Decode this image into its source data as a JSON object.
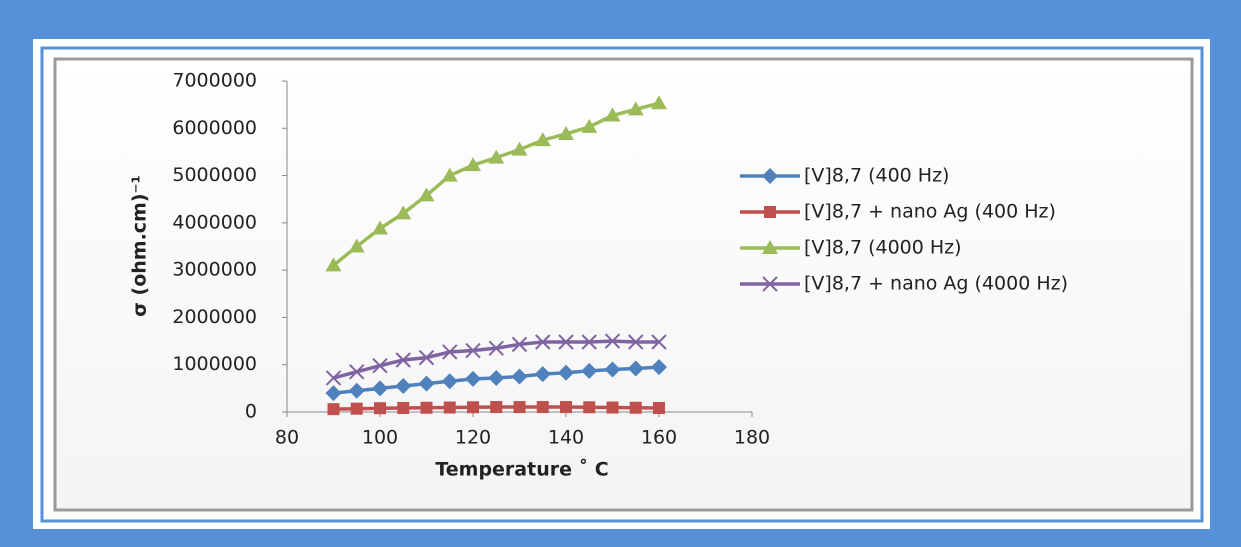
{
  "chart_data": {
    "type": "line",
    "x": [
      90,
      95,
      100,
      105,
      110,
      115,
      120,
      125,
      130,
      135,
      140,
      145,
      150,
      155,
      160
    ],
    "series": [
      {
        "name": "[V]8,7 (400 Hz)",
        "color": "#4f81bd",
        "marker": "diamond",
        "values": [
          400000,
          450000,
          500000,
          550000,
          600000,
          650000,
          700000,
          720000,
          750000,
          800000,
          830000,
          870000,
          900000,
          920000,
          950000
        ]
      },
      {
        "name": "[V]8,7 + nano Ag (400 Hz)",
        "color": "#c0504d",
        "marker": "square",
        "values": [
          60000,
          70000,
          80000,
          85000,
          90000,
          95000,
          100000,
          105000,
          105000,
          105000,
          105000,
          100000,
          95000,
          90000,
          85000
        ]
      },
      {
        "name": "[V]8,7 (4000 Hz)",
        "color": "#9bbb59",
        "marker": "triangle",
        "values": [
          3100000,
          3500000,
          3880000,
          4200000,
          4580000,
          5000000,
          5220000,
          5380000,
          5550000,
          5750000,
          5880000,
          6030000,
          6270000,
          6400000,
          6530000
        ]
      },
      {
        "name": "[V]8,7  + nano Ag (4000 Hz)",
        "color": "#8064a2",
        "marker": "x",
        "values": [
          720000,
          850000,
          980000,
          1100000,
          1150000,
          1270000,
          1300000,
          1350000,
          1430000,
          1480000,
          1480000,
          1480000,
          1500000,
          1480000,
          1480000
        ]
      }
    ],
    "x_label": "Temperature ˚ C",
    "y_label": "σ (ohm.cm)⁻¹",
    "xlim": [
      80,
      180
    ],
    "xticks": [
      80,
      100,
      120,
      140,
      160,
      180
    ],
    "ylim": [
      0,
      7000000
    ],
    "yticks": [
      0,
      1000000,
      2000000,
      3000000,
      4000000,
      5000000,
      6000000,
      7000000
    ],
    "grid": false,
    "legend": "right"
  }
}
